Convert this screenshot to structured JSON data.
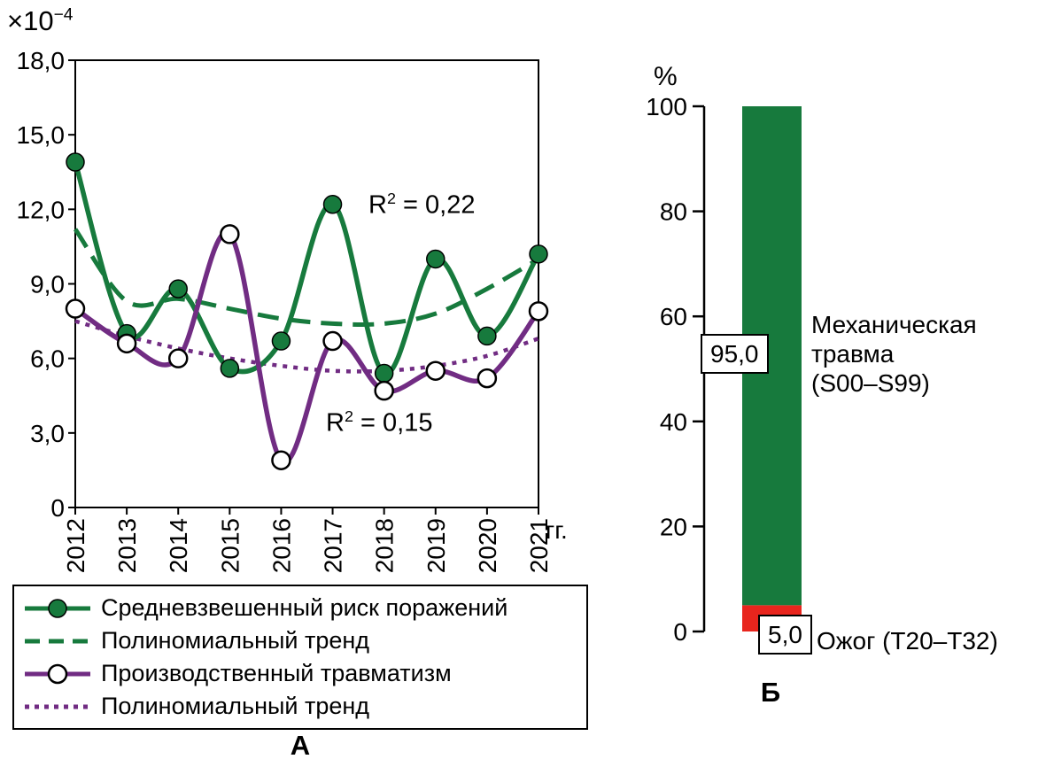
{
  "colors": {
    "green": "#177a3d",
    "purple": "#712c83",
    "red": "#e8251d"
  },
  "chart_data": [
    {
      "id": "A",
      "type": "line",
      "panel_label": "А",
      "multiplier": {
        "base": "×10",
        "sup": "−4"
      },
      "xlabel": "гг.",
      "x": [
        "2012",
        "2013",
        "2014",
        "2015",
        "2016",
        "2017",
        "2018",
        "2019",
        "2020",
        "2021"
      ],
      "ylim": [
        0,
        18
      ],
      "ytick_values": [
        0,
        3,
        6,
        9,
        12,
        15,
        18
      ],
      "ytick_labels": [
        "0",
        "3,0",
        "6,0",
        "9,0",
        "12,0",
        "15,0",
        "18,0"
      ],
      "series": [
        {
          "name": "Средневзвешенный риск поражений",
          "style": "solid",
          "marker": "filled",
          "color": "green",
          "values": [
            13.9,
            7.0,
            8.8,
            5.6,
            6.7,
            12.2,
            5.4,
            10.0,
            6.9,
            10.2
          ]
        },
        {
          "name": "Полиномиальный тренд",
          "style": "dashed",
          "color": "green",
          "values": [
            11.2,
            8.3,
            8.4,
            8.0,
            7.6,
            7.4,
            7.4,
            7.8,
            8.8,
            10.0
          ]
        },
        {
          "name": "Производственный травматизм",
          "style": "solid",
          "marker": "open",
          "color": "purple",
          "values": [
            8.0,
            6.6,
            6.0,
            11.0,
            1.9,
            6.7,
            4.7,
            5.5,
            5.2,
            7.9
          ]
        },
        {
          "name": "Полиномиальный тренд",
          "style": "dotted",
          "color": "purple",
          "values": [
            7.5,
            6.9,
            6.4,
            6.0,
            5.7,
            5.5,
            5.5,
            5.7,
            6.1,
            6.8
          ]
        }
      ],
      "annotations": [
        {
          "base": "R",
          "sup": "2",
          "rest": " = 0,22"
        },
        {
          "base": "R",
          "sup": "2",
          "rest": " = 0,15"
        }
      ]
    },
    {
      "id": "B",
      "type": "stacked-bar",
      "panel_label": "Б",
      "axis_label": "%",
      "ylim": [
        0,
        100
      ],
      "ytick_values": [
        0,
        20,
        40,
        60,
        80,
        100
      ],
      "ytick_labels": [
        "0",
        "20",
        "40",
        "60",
        "80",
        "100"
      ],
      "segments": [
        {
          "name": "Механическая\nтравма\n(S00–S99)",
          "value": 95.0,
          "value_label": "95,0",
          "color": "green"
        },
        {
          "name": "Ожог (T20–T32)",
          "value": 5.0,
          "value_label": "5,0",
          "color": "red"
        }
      ]
    }
  ]
}
